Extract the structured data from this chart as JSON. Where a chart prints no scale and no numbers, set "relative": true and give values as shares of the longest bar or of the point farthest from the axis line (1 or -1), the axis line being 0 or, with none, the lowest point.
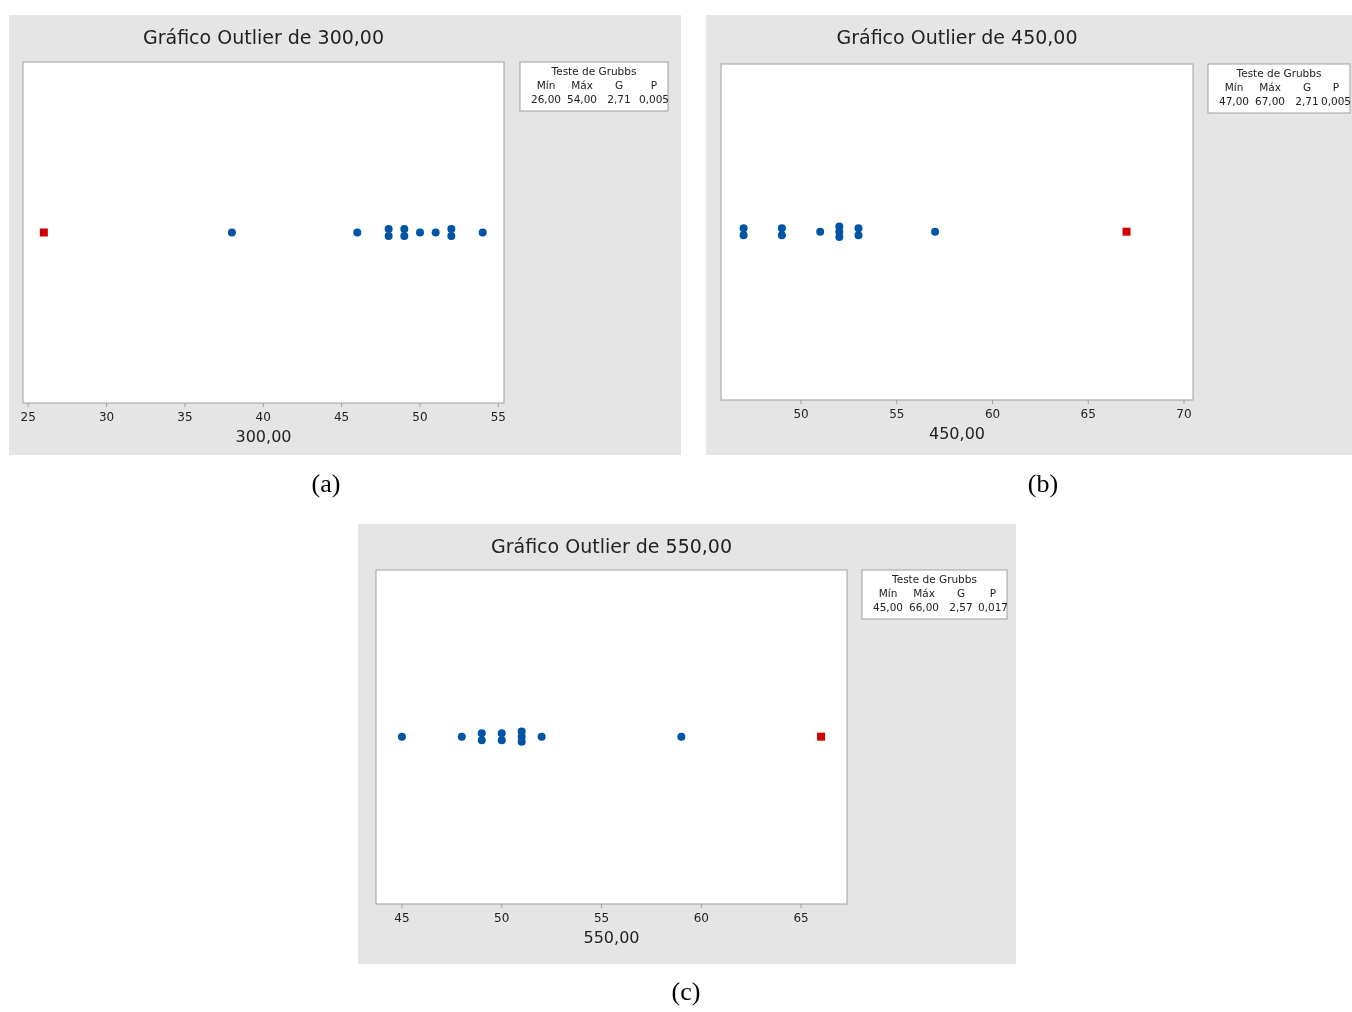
{
  "chart_data": [
    {
      "type": "scatter",
      "relative": true,
      "title": "Gráfico Outlier de 300,00",
      "xlabel": "300,00",
      "xlim": [
        24.67,
        55.36
      ],
      "xticks": [
        25,
        30,
        35,
        40,
        45,
        50,
        55
      ],
      "tick_labels": "x",
      "annotations": [
        "Teste de Grubbs",
        "Mín",
        "Máx",
        "G",
        "P",
        "26,00",
        "54,00",
        "2,71",
        "0,005",
        "(a)"
      ],
      "series": [
        {
          "color": "#0054a6",
          "marker": "circle",
          "x": [
            38,
            46,
            48,
            48,
            49,
            49,
            50,
            51,
            52,
            52,
            54
          ],
          "values": [
            0.98,
            0.98,
            1,
            0.96,
            1,
            0.96,
            0.98,
            0.98,
            1,
            0.96,
            0.98
          ]
        },
        {
          "color": "#d00000",
          "marker": "square",
          "x": [
            26
          ],
          "values": [
            0.98
          ]
        }
      ]
    },
    {
      "type": "scatter",
      "relative": true,
      "title": "Gráfico Outlier de 450,00",
      "xlabel": "450,00",
      "xlim": [
        45.82,
        70.47
      ],
      "xticks": [
        50,
        55,
        60,
        65,
        70
      ],
      "tick_labels": "x",
      "annotations": [
        "Teste de Grubbs",
        "Mín",
        "Máx",
        "G",
        "P",
        "47,00",
        "67,00",
        "2,71",
        "0,005",
        "(b)"
      ],
      "series": [
        {
          "color": "#0054a6",
          "marker": "circle",
          "x": [
            47,
            47,
            49,
            49,
            51,
            52,
            52,
            52,
            53,
            53,
            57
          ],
          "values": [
            0.99,
            0.95,
            0.99,
            0.95,
            0.97,
            1,
            0.97,
            0.94,
            0.99,
            0.95,
            0.97
          ]
        },
        {
          "color": "#d00000",
          "marker": "square",
          "x": [
            67
          ],
          "values": [
            0.97
          ]
        }
      ]
    },
    {
      "type": "scatter",
      "relative": true,
      "title": "Gráfico Outlier de 550,00",
      "xlabel": "550,00",
      "xlim": [
        43.7,
        67.3
      ],
      "xticks": [
        45,
        50,
        55,
        60,
        65
      ],
      "tick_labels": "x",
      "annotations": [
        "Teste de Grubbs",
        "Mín",
        "Máx",
        "G",
        "P",
        "45,00",
        "66,00",
        "2,57",
        "0,017",
        "(c)"
      ],
      "series": [
        {
          "color": "#0054a6",
          "marker": "circle",
          "x": [
            45,
            48,
            49,
            49,
            50,
            50,
            51,
            51,
            51,
            52,
            59
          ],
          "values": [
            0.97,
            0.97,
            0.99,
            0.95,
            0.99,
            0.95,
            1,
            0.97,
            0.94,
            0.97,
            0.97
          ]
        },
        {
          "color": "#d00000",
          "marker": "square",
          "x": [
            66
          ],
          "values": [
            0.97
          ]
        }
      ]
    }
  ]
}
